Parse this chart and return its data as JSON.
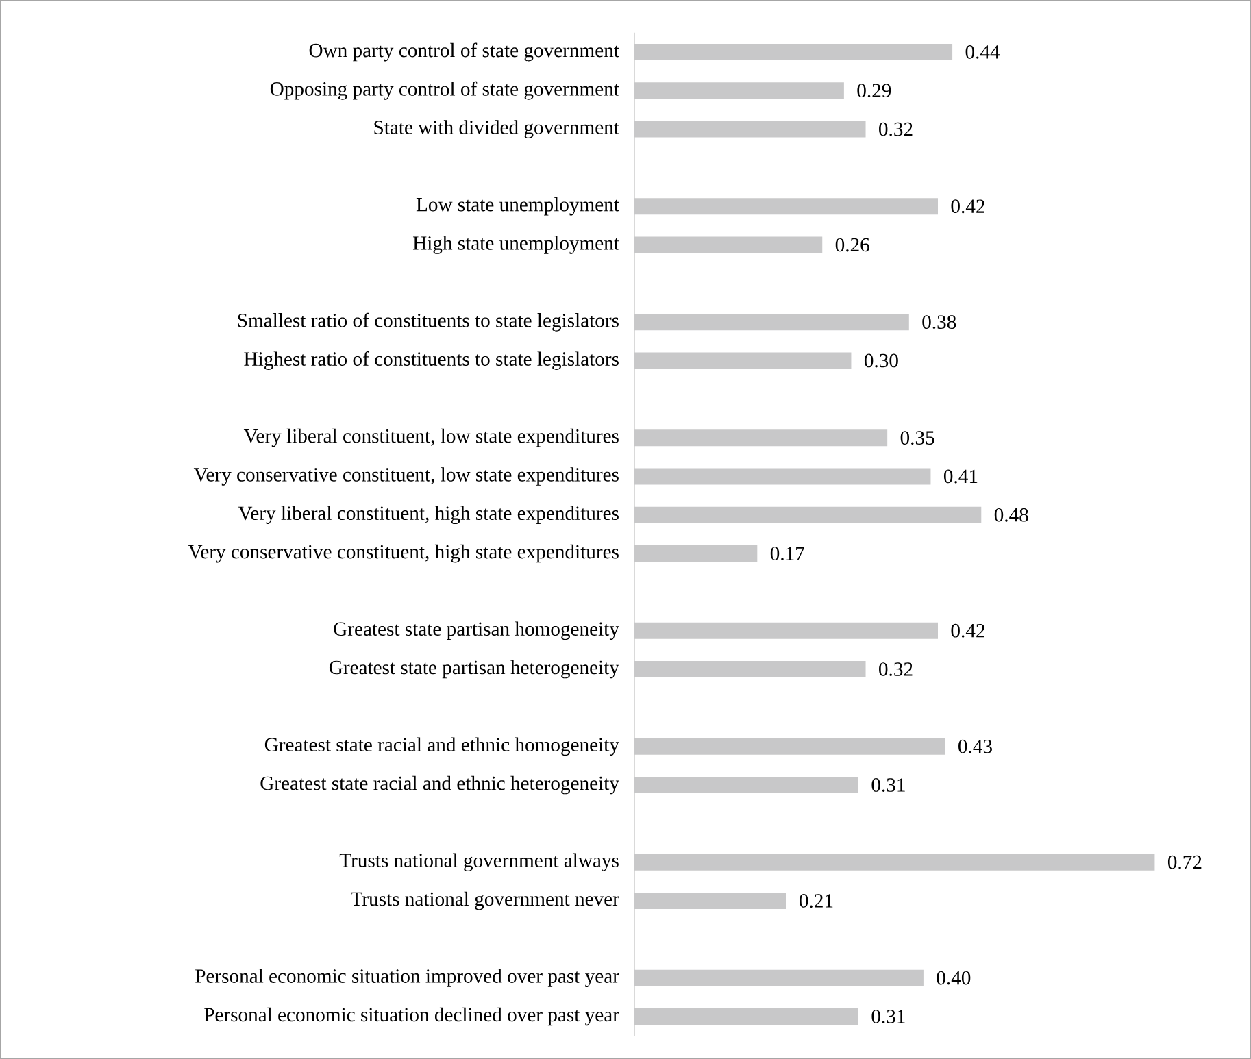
{
  "chart_data": {
    "type": "bar",
    "orientation": "horizontal",
    "categories": [
      "Own party control of state government",
      "Opposing party control of state government",
      "State with divided government",
      null,
      "Low state unemployment",
      "High state unemployment",
      null,
      "Smallest ratio of constituents to state legislators",
      "Highest ratio of constituents to state legislators",
      null,
      "Very liberal constituent, low state expenditures",
      "Very conservative constituent, low state expenditures",
      "Very liberal constituent, high state expenditures",
      "Very conservative constituent, high state expenditures",
      null,
      "Greatest state partisan homogeneity",
      "Greatest state partisan heterogeneity",
      null,
      "Greatest state racial and ethnic homogeneity",
      "Greatest state racial and ethnic heterogeneity",
      null,
      "Trusts national government always",
      "Trusts national government never",
      null,
      "Personal economic situation improved over past year",
      "Personal economic situation declined over past year"
    ],
    "values": [
      0.44,
      0.29,
      0.32,
      null,
      0.42,
      0.26,
      null,
      0.38,
      0.3,
      null,
      0.35,
      0.41,
      0.48,
      0.17,
      null,
      0.42,
      0.32,
      null,
      0.43,
      0.31,
      null,
      0.72,
      0.21,
      null,
      0.4,
      0.31
    ],
    "value_labels": [
      "0.44",
      "0.29",
      "0.32",
      null,
      "0.42",
      "0.26",
      null,
      "0.38",
      "0.30",
      null,
      "0.35",
      "0.41",
      "0.48",
      "0.17",
      null,
      "0.42",
      "0.32",
      null,
      "0.43",
      "0.31",
      null,
      "0.72",
      "0.21",
      null,
      "0.40",
      "0.31"
    ],
    "color": "#c8c8c9"
  }
}
